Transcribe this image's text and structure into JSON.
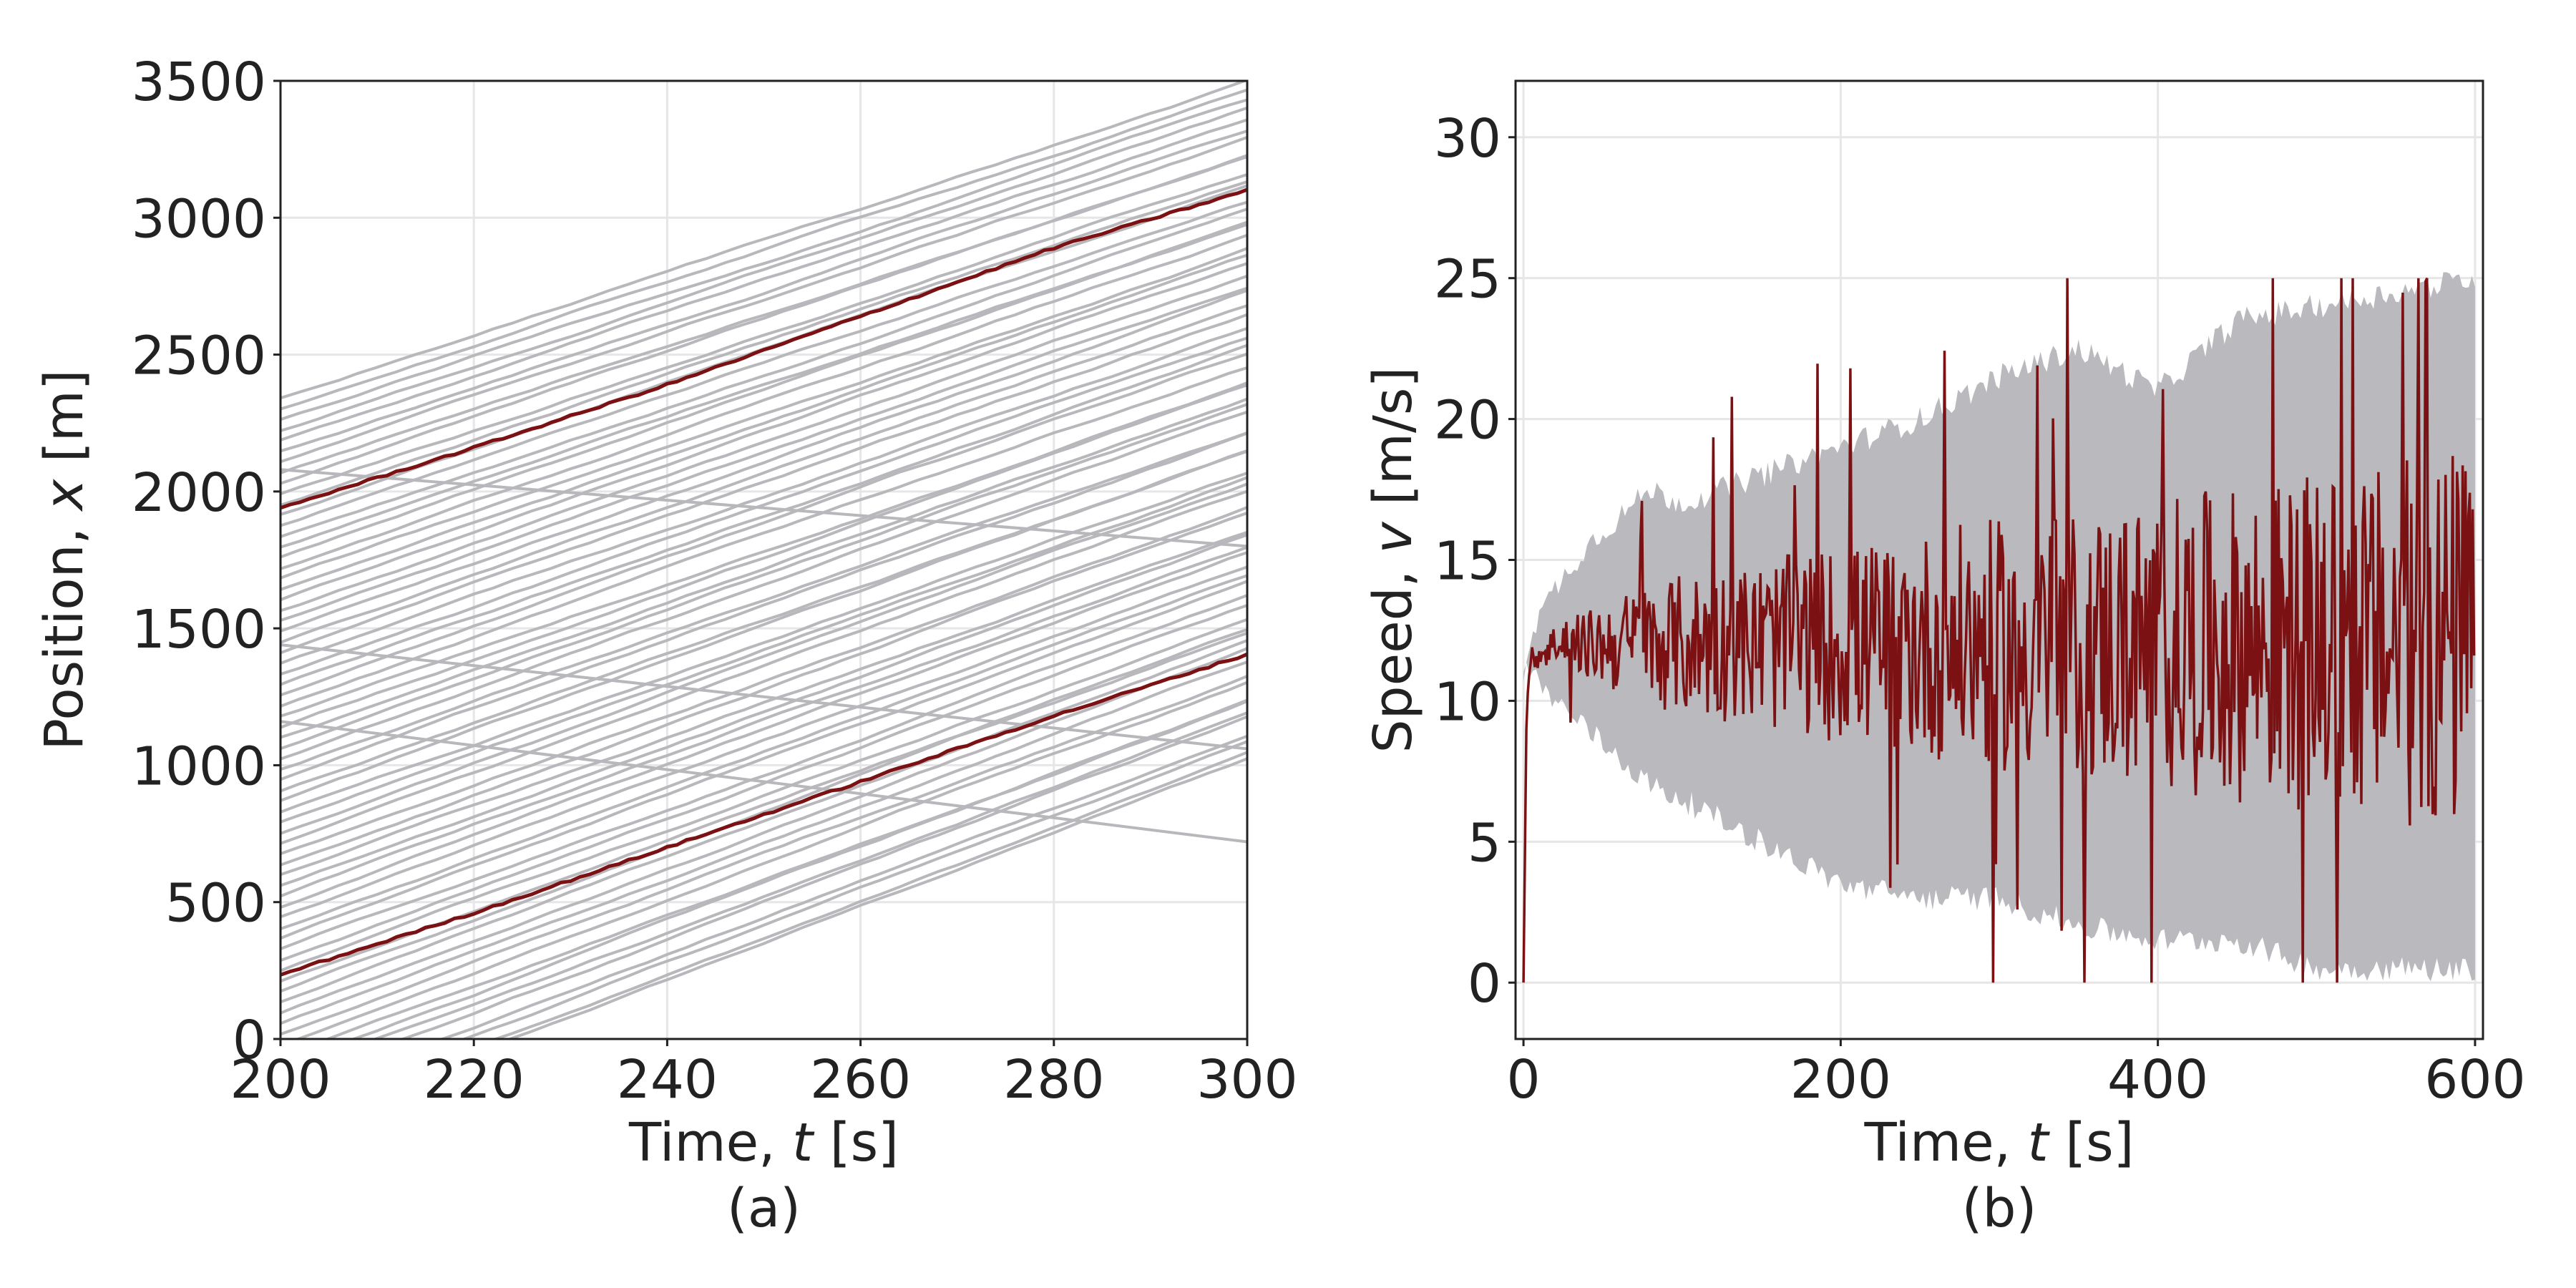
{
  "colors": {
    "highlight": "#7b1113",
    "background_lines": "#b8b8bc",
    "band": "#b9b9be",
    "grid": "#e6e6e6",
    "axis": "#222222"
  },
  "chart_data": [
    {
      "type": "line",
      "panel_label": "(a)",
      "xlabel": "Time, t [s]",
      "xlabel_parts": [
        "Time, ",
        "t",
        " [s]"
      ],
      "ylabel": "Position, x [m]",
      "ylabel_parts": [
        "Position, ",
        "x",
        " [m]"
      ],
      "xlim": [
        200,
        300
      ],
      "ylim": [
        0,
        3500
      ],
      "xticks": [
        200,
        220,
        240,
        260,
        280,
        300
      ],
      "yticks": [
        0,
        500,
        1000,
        1500,
        2000,
        2500,
        3000,
        3500
      ],
      "grid": true,
      "background_trajectories": {
        "description_count": 70,
        "bottom_line": {
          "x": [
            200,
            300
          ],
          "y": [
            -330,
            1010
          ]
        },
        "top_line": {
          "x": [
            200,
            300
          ],
          "y": [
            2340,
            3500
          ]
        }
      },
      "series": [
        {
          "x": [
            200,
            220,
            240,
            260,
            280,
            300
          ],
          "y": [
            1940,
            2160,
            2390,
            2640,
            2890,
            3100
          ]
        },
        {
          "x": [
            200,
            220,
            240,
            250,
            260,
            280,
            300
          ],
          "y": [
            235,
            460,
            700,
            820,
            940,
            1180,
            1405
          ]
        }
      ]
    },
    {
      "type": "area",
      "panel_label": "(b)",
      "xlabel": "Time, t [s]",
      "xlabel_parts": [
        "Time, ",
        "t",
        " [s]"
      ],
      "ylabel": "Speed, v [m/s]",
      "ylabel_parts": [
        "Speed, ",
        "v",
        " [m/s]"
      ],
      "xlim": [
        -5,
        605
      ],
      "ylim": [
        -2,
        32
      ],
      "xticks": [
        0,
        200,
        400,
        600
      ],
      "yticks": [
        0,
        5,
        10,
        15,
        20,
        25,
        30
      ],
      "grid": true,
      "band": {
        "x": [
          0,
          5,
          20,
          40,
          60,
          80,
          100,
          150,
          200,
          250,
          300,
          350,
          400,
          450,
          500,
          550,
          600
        ],
        "upper": [
          11,
          12.5,
          14,
          15.5,
          16.5,
          17.5,
          17,
          18,
          19,
          20,
          21.5,
          22.5,
          21,
          23.5,
          24,
          24.5,
          25
        ],
        "lower": [
          11,
          11,
          10,
          9,
          8,
          7,
          6.5,
          5,
          3.5,
          3,
          3,
          2,
          1.5,
          1.5,
          0.5,
          0.5,
          0.5
        ]
      },
      "series": [
        {
          "x": [
            0,
            2,
            5,
            20,
            40,
            60,
            80,
            100,
            150,
            200,
            250,
            300,
            350,
            400,
            450,
            500,
            520,
            550,
            580,
            600
          ],
          "y": [
            0,
            10,
            11.5,
            12,
            12,
            12,
            12,
            12,
            12,
            12,
            12,
            12,
            12,
            12,
            12,
            12,
            12,
            12,
            12,
            12
          ],
          "spread": [
            0,
            0,
            0.4,
            0.8,
            1.2,
            1.8,
            2.2,
            2.5,
            3,
            3.5,
            4,
            4.5,
            4.8,
            5.2,
            5.6,
            6,
            6,
            6.5,
            7,
            7
          ]
        }
      ]
    }
  ]
}
